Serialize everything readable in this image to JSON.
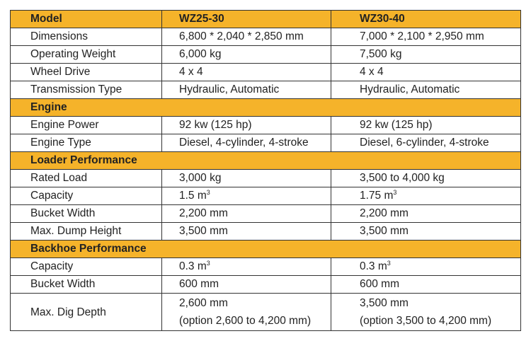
{
  "header": {
    "label": "Model",
    "model_a": "WZ25-30",
    "model_b": "WZ30-40"
  },
  "sections": [
    {
      "title": null,
      "rows": [
        {
          "label": "Dimensions",
          "a": "6,800 * 2,040 * 2,850 mm",
          "b": "7,000 * 2,100 * 2,950 mm"
        },
        {
          "label": "Operating Weight",
          "a": "6,000 kg",
          "b": "7,500 kg"
        },
        {
          "label": "Wheel Drive",
          "a": "4 x 4",
          "b": "4 x 4"
        },
        {
          "label": "Transmission Type",
          "a": "Hydraulic, Automatic",
          "b": "Hydraulic, Automatic"
        }
      ]
    },
    {
      "title": "Engine",
      "rows": [
        {
          "label": "Engine Power",
          "a": "92 kw (125 hp)",
          "b": "92 kw (125 hp)"
        },
        {
          "label": "Engine Type",
          "a": "Diesel, 4-cylinder, 4-stroke",
          "b": "Diesel, 6-cylinder, 4-stroke"
        }
      ]
    },
    {
      "title": "Loader Performance",
      "rows": [
        {
          "label": "Rated Load",
          "a": "3,000 kg",
          "b": "3,500 to 4,000 kg"
        },
        {
          "label": "Capacity",
          "a": "1.5 m",
          "a_sup": "3",
          "b": "1.75 m",
          "b_sup": "3"
        },
        {
          "label": "Bucket Width",
          "a": "2,200 mm",
          "b": "2,200 mm"
        },
        {
          "label": "Max. Dump Height",
          "a": "3,500 mm",
          "b": "3,500 mm"
        }
      ]
    },
    {
      "title": "Backhoe Performance",
      "rows": [
        {
          "label": "Capacity",
          "a": "0.3 m",
          "a_sup": "3",
          "b": "0.3 m",
          "b_sup": "3"
        },
        {
          "label": "Bucket Width",
          "a": "600 mm",
          "b": "600 mm"
        },
        {
          "label": "Max. Dig Depth",
          "a": "2,600 mm",
          "a2": "(option 2,600 to 4,200 mm)",
          "b": "3,500 mm",
          "b2": "(option 3,500 to 4,200 mm)"
        }
      ]
    }
  ],
  "colors": {
    "header_bg": "#f5b32a",
    "border": "#333333"
  }
}
